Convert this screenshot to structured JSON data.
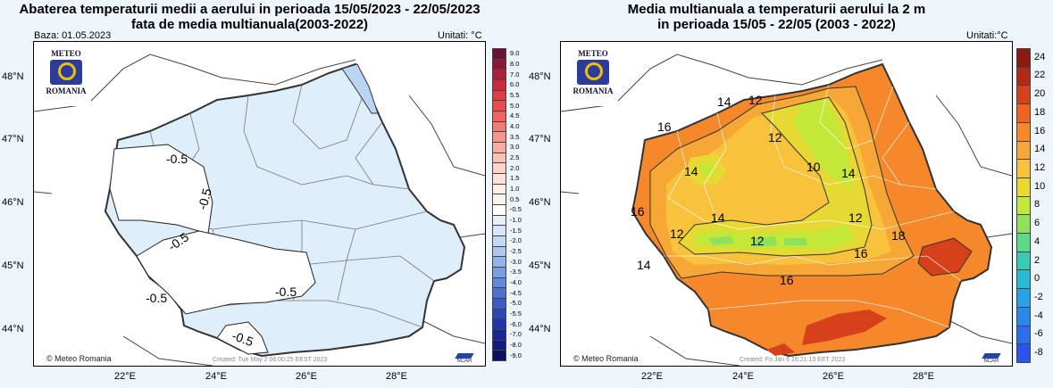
{
  "left": {
    "title_lines": [
      "Abaterea temperaturii medii a aerului in perioada 15/05/2023 - 22/05/2023",
      "fata de media multianuala(2003-2022)"
    ],
    "baza": "Baza: 01.05.2023",
    "units": "Unitati: °C",
    "created": "Created: Tue May  2 06:00:25 EEST 2023",
    "colorbar": {
      "labels": [
        "9.0",
        "8.0",
        "7.0",
        "6.0",
        "5.5",
        "5.0",
        "4.5",
        "4.0",
        "3.5",
        "3.0",
        "2.5",
        "2.0",
        "1.5",
        "1.0",
        "0.5",
        "-0.5",
        "-1.0",
        "-1.5",
        "-2.0",
        "-2.5",
        "-3.0",
        "-3.5",
        "-4.0",
        "-4.5",
        "-5.0",
        "-5.5",
        "-6.0",
        "-7.0",
        "-8.0",
        "-9.0"
      ],
      "colors": [
        "#6b1232",
        "#8e1736",
        "#b01e38",
        "#cc2a3a",
        "#df3b42",
        "#e84c4e",
        "#ef6361",
        "#f27d77",
        "#f5968c",
        "#f7ada1",
        "#f9c2b6",
        "#fbd3c8",
        "#fce3d8",
        "#fdeee6",
        "#fff6f0",
        "#ffffff",
        "#e6f0fb",
        "#d6e6f8",
        "#c3d8f3",
        "#acc8ee",
        "#93b4e8",
        "#7a9fe1",
        "#6488d8",
        "#4f71cf",
        "#3c5bc4",
        "#2c47b6",
        "#2035a6",
        "#172693",
        "#10197c",
        "#0b1062"
      ]
    },
    "contour_labels": [
      "-0.5",
      "-0.5",
      "-0.5",
      "-0.5",
      "-0.5",
      "-0.5"
    ]
  },
  "right": {
    "title_lines": [
      "Media multianuala a temperaturii aerului la 2 m",
      "in perioada 15/05 - 22/05 (2003 - 2022)"
    ],
    "units": "Unitati:°C",
    "created": "Created: Fri Jan  6 16:21:13 EET 2023",
    "colorbar": {
      "labels": [
        "24",
        "22",
        "20",
        "18",
        "16",
        "14",
        "12",
        "10",
        "8",
        "6",
        "4",
        "2",
        "0",
        "-2",
        "-4",
        "-6",
        "-8"
      ],
      "colors": [
        "#8b1a10",
        "#b22a15",
        "#d6401a",
        "#ee6420",
        "#f4882a",
        "#f7a735",
        "#f9c23c",
        "#e6d934",
        "#c3e838",
        "#8fe05a",
        "#5fd88a",
        "#38cdb3",
        "#28b9d6",
        "#2aa2e6",
        "#2b87ec",
        "#2c6ef0",
        "#2c52f0"
      ]
    },
    "contour_labels": [
      "14",
      "12",
      "16",
      "12",
      "14",
      "10",
      "14",
      "16",
      "14",
      "12",
      "12",
      "12",
      "16",
      "18",
      "14",
      "16"
    ]
  },
  "shared": {
    "logo_top": "METEO",
    "logo_bottom": "ROMANIA",
    "copyright": "© Meteo Romania",
    "ncar": "NCAR",
    "lat_labels": [
      "48°N",
      "47°N",
      "46°N",
      "45°N",
      "44°N"
    ],
    "lon_labels": [
      "22°E",
      "24°E",
      "26°E",
      "28°E"
    ],
    "colors": {
      "romania_fill_left": "#dfeefb",
      "sea_left": "#ffffff",
      "romania_fill_right": "#f4882a",
      "green_zone": "#c3e838",
      "light_green_zone": "#8fe05a",
      "yellow_zone": "#e6d934",
      "hot_zone": "#d6401a"
    }
  }
}
